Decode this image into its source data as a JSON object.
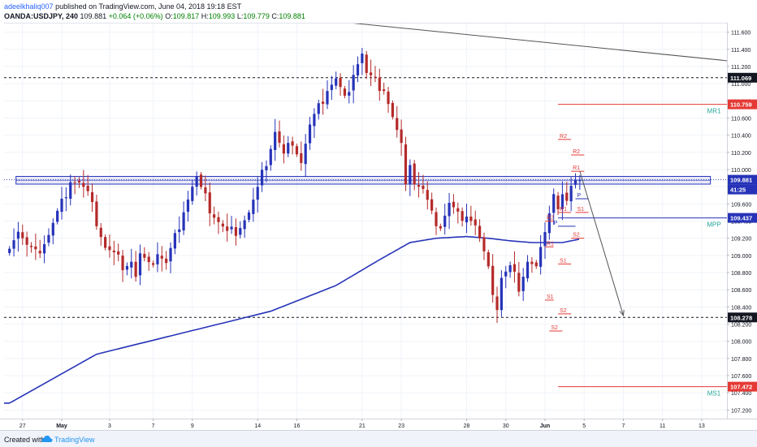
{
  "header": {
    "author": "adeelkhaliq007",
    "published": "published on TradingView.com, June 04, 2018 19:18 EST",
    "symbol": "OANDA:USDJPY, 240",
    "last": "109.881",
    "change": "+0.064 (+0.06%)",
    "ohlc_o_label": "O:",
    "ohlc_o": "109.817",
    "ohlc_h_label": "H:",
    "ohlc_h": "109.993",
    "ohlc_l_label": "L:",
    "ohlc_l": "109.779",
    "ohlc_c_label": "C:",
    "ohlc_c": "109.881"
  },
  "footer": {
    "created_with": "Created with",
    "brand": "TradingView"
  },
  "colors": {
    "up": "#2633b8",
    "down": "#b52a2a",
    "ma": "#2633b8",
    "pivot_red": "#e53935",
    "pivot_blue": "#2633b8",
    "level_label_dark": "#131722",
    "mr_ms_green": "#26a69a",
    "grid": "#f0f3fa"
  },
  "chart_data": {
    "type": "candlestick",
    "symbol": "OANDA:USDJPY",
    "timeframe": "240",
    "ylim": [
      107.1,
      111.7
    ],
    "y_ticks": [
      "107.200",
      "107.400",
      "107.600",
      "107.800",
      "108.000",
      "108.200",
      "108.400",
      "108.600",
      "108.800",
      "109.000",
      "109.200",
      "109.400",
      "109.600",
      "109.800",
      "110.000",
      "110.200",
      "110.400",
      "110.600",
      "110.800",
      "111.000",
      "111.200",
      "111.400",
      "111.600"
    ],
    "x_ticks": [
      {
        "label": "27",
        "i": 3
      },
      {
        "label": "May",
        "i": 12
      },
      {
        "label": "3",
        "i": 23
      },
      {
        "label": "7",
        "i": 33
      },
      {
        "label": "9",
        "i": 42
      },
      {
        "label": "14",
        "i": 57
      },
      {
        "label": "16",
        "i": 66
      },
      {
        "label": "21",
        "i": 81
      },
      {
        "label": "23",
        "i": 90
      },
      {
        "label": "28",
        "i": 105
      },
      {
        "label": "30",
        "i": 114
      },
      {
        "label": "Jun",
        "i": 123
      },
      {
        "label": "5",
        "i": 132
      },
      {
        "label": "7",
        "i": 141
      },
      {
        "label": "11",
        "i": 150
      },
      {
        "label": "13",
        "i": 159
      }
    ],
    "last_index": 131,
    "anchors": [
      [
        0,
        109.15
      ],
      [
        2,
        109.3
      ],
      [
        4,
        109.1
      ],
      [
        6,
        109.0
      ],
      [
        9,
        109.25
      ],
      [
        12,
        109.6
      ],
      [
        14,
        109.9
      ],
      [
        16,
        109.85
      ],
      [
        18,
        109.7
      ],
      [
        20,
        109.4
      ],
      [
        22,
        109.1
      ],
      [
        24,
        109.0
      ],
      [
        26,
        108.9
      ],
      [
        28,
        108.95
      ],
      [
        29,
        108.75
      ],
      [
        30,
        109.0
      ],
      [
        32,
        108.85
      ],
      [
        34,
        109.05
      ],
      [
        36,
        108.9
      ],
      [
        38,
        109.2
      ],
      [
        40,
        109.55
      ],
      [
        42,
        109.8
      ],
      [
        43,
        109.9
      ],
      [
        44,
        109.75
      ],
      [
        46,
        109.55
      ],
      [
        48,
        109.4
      ],
      [
        50,
        109.25
      ],
      [
        52,
        109.3
      ],
      [
        55,
        109.5
      ],
      [
        57,
        109.75
      ],
      [
        59,
        110.1
      ],
      [
        61,
        110.45
      ],
      [
        63,
        110.15
      ],
      [
        65,
        110.35
      ],
      [
        67,
        110.1
      ],
      [
        69,
        110.5
      ],
      [
        71,
        110.7
      ],
      [
        73,
        110.95
      ],
      [
        75,
        111.05
      ],
      [
        77,
        110.8
      ],
      [
        79,
        111.15
      ],
      [
        81,
        111.35
      ],
      [
        82,
        111.1
      ],
      [
        84,
        111.0
      ],
      [
        86,
        110.95
      ],
      [
        88,
        110.6
      ],
      [
        90,
        110.25
      ],
      [
        91,
        109.9
      ],
      [
        92,
        110.1
      ],
      [
        93,
        109.85
      ],
      [
        95,
        109.75
      ],
      [
        97,
        109.45
      ],
      [
        99,
        109.35
      ],
      [
        101,
        109.6
      ],
      [
        103,
        109.45
      ],
      [
        105,
        109.5
      ],
      [
        107,
        109.35
      ],
      [
        109,
        109.0
      ],
      [
        111,
        108.6
      ],
      [
        112,
        108.4
      ],
      [
        113,
        108.75
      ],
      [
        115,
        108.85
      ],
      [
        117,
        108.65
      ],
      [
        119,
        108.95
      ],
      [
        121,
        108.85
      ],
      [
        122,
        109.05
      ],
      [
        123,
        109.2
      ],
      [
        124,
        109.55
      ],
      [
        125,
        109.75
      ],
      [
        126,
        109.55
      ],
      [
        127,
        109.7
      ],
      [
        128,
        109.6
      ],
      [
        129,
        109.75
      ],
      [
        130,
        109.95
      ],
      [
        131,
        109.881
      ]
    ],
    "moving_average": [
      [
        0,
        107.28
      ],
      [
        20,
        107.85
      ],
      [
        40,
        108.1
      ],
      [
        60,
        108.35
      ],
      [
        75,
        108.65
      ],
      [
        85,
        108.95
      ],
      [
        92,
        109.15
      ],
      [
        98,
        109.2
      ],
      [
        105,
        109.22
      ],
      [
        110,
        109.2
      ],
      [
        115,
        109.17
      ],
      [
        120,
        109.15
      ],
      [
        127,
        109.15
      ],
      [
        131,
        109.19
      ]
    ],
    "levels": [
      {
        "name": "resistance-111069",
        "price": 111.069,
        "style": "dashed",
        "color": "#131722",
        "tag": "111.069",
        "tag_bg": "#131722",
        "tag_fg": "#ffffff"
      },
      {
        "name": "support-108278",
        "price": 108.278,
        "style": "dashed",
        "color": "#131722",
        "tag": "108.278",
        "tag_bg": "#131722",
        "tag_fg": "#ffffff"
      },
      {
        "name": "mr1",
        "price": 110.759,
        "from_i": 126,
        "color": "#e53935",
        "label": "MR1",
        "tag": "110.759",
        "tag_bg": "#e53935",
        "tag_fg": "#ffffff"
      },
      {
        "name": "mpp",
        "price": 109.437,
        "from_i": 126,
        "color": "#2633b8",
        "label": "MPP",
        "tag": "109.437",
        "tag_bg": "#2633b8",
        "tag_fg": "#ffffff"
      },
      {
        "name": "ms1",
        "price": 107.472,
        "from_i": 126,
        "color": "#e53935",
        "label": "MS1",
        "tag": "107.472",
        "tag_bg": "#e53935",
        "tag_fg": "#ffffff"
      }
    ],
    "current_price": {
      "price": 109.881,
      "tag": "109.881",
      "tag2": "41:25",
      "color": "#2633b8"
    },
    "zone": {
      "top": 109.92,
      "bottom": 109.83,
      "from_i": 0,
      "to_i": 161
    },
    "trendlines": [
      {
        "name": "down-trendline",
        "from": [
          70,
          111.75
        ],
        "to": [
          178,
          111.2
        ]
      },
      {
        "name": "projection-arrow",
        "from": [
          131,
          109.98
        ],
        "to": [
          141,
          108.3
        ]
      }
    ],
    "pivots": [
      {
        "label": "R1",
        "price": 109.1,
        "i1": 123,
        "i2": 125,
        "color": "#e53935"
      },
      {
        "label": "R2",
        "price": 109.4,
        "i1": 123,
        "i2": 125,
        "color": "#e53935"
      },
      {
        "label": "P",
        "price": 109.34,
        "i1": 126,
        "i2": 130,
        "color": "#2633b8",
        "lbl_i": 125
      },
      {
        "label": "S1",
        "price": 108.48,
        "i1": 123,
        "i2": 125,
        "color": "#e53935"
      },
      {
        "label": "S2",
        "price": 108.12,
        "i1": 124,
        "i2": 127,
        "color": "#e53935"
      },
      {
        "label": "R2",
        "price": 110.35,
        "i1": 126,
        "i2": 129,
        "color": "#e53935"
      },
      {
        "label": "R1",
        "price": 109.5,
        "i1": 126,
        "i2": 129,
        "color": "#e53935"
      },
      {
        "label": "S1",
        "price": 108.9,
        "i1": 126,
        "i2": 129,
        "color": "#e53935"
      },
      {
        "label": "S2",
        "price": 108.32,
        "i1": 126,
        "i2": 129,
        "color": "#e53935"
      },
      {
        "label": "R2",
        "price": 110.17,
        "i1": 129,
        "i2": 132,
        "color": "#e53935"
      },
      {
        "label": "R1",
        "price": 109.98,
        "i1": 129,
        "i2": 132,
        "color": "#e53935"
      },
      {
        "label": "P",
        "price": 109.66,
        "i1": 130,
        "i2": 133,
        "color": "#2633b8"
      },
      {
        "label": "S1",
        "price": 109.5,
        "i1": 130,
        "i2": 133,
        "color": "#e53935"
      },
      {
        "label": "S2",
        "price": 109.2,
        "i1": 129,
        "i2": 132,
        "color": "#e53935"
      }
    ]
  }
}
